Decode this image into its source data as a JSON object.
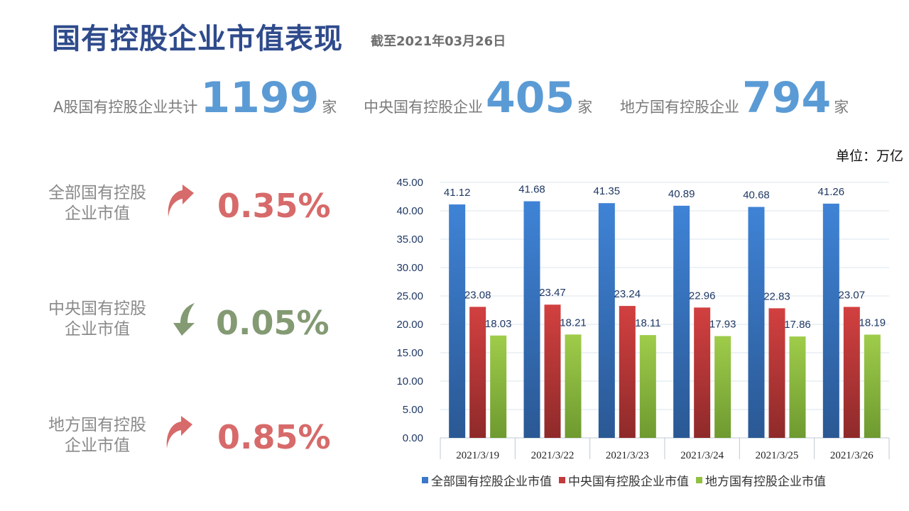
{
  "header": {
    "title": "国有控股企业市值表现",
    "subtitle": "截至2021年03月26日"
  },
  "stats": [
    {
      "label": "A股国有控股企业共计",
      "value": "1199",
      "unit": "家"
    },
    {
      "label": "中央国有控股企业",
      "value": "405",
      "unit": "家"
    },
    {
      "label": "地方国有控股企业",
      "value": "794",
      "unit": "家"
    }
  ],
  "unit_label": "单位：万亿",
  "metrics": [
    {
      "label_line1": "全部国有控股",
      "label_line2": "企业市值",
      "direction": "up",
      "icon": "arrow-up-icon",
      "value": "0.35%",
      "color": "#d76a6a"
    },
    {
      "label_line1": "中央国有控股",
      "label_line2": "企业市值",
      "direction": "down",
      "icon": "arrow-down-icon",
      "value": "0.05%",
      "color": "#839a73"
    },
    {
      "label_line1": "地方国有控股",
      "label_line2": "企业市值",
      "direction": "up",
      "icon": "arrow-up-icon",
      "value": "0.85%",
      "color": "#d76a6a"
    }
  ],
  "chart_data": {
    "type": "bar",
    "categories": [
      "2021/3/19",
      "2021/3/22",
      "2021/3/23",
      "2021/3/24",
      "2021/3/25",
      "2021/3/26"
    ],
    "series": [
      {
        "name": "全部国有控股企业市值",
        "color": "#3a78c9",
        "values": [
          41.12,
          41.68,
          41.35,
          40.89,
          40.68,
          41.26
        ]
      },
      {
        "name": "中央国有控股企业市值",
        "color": "#c43a3a",
        "values": [
          23.08,
          23.47,
          23.24,
          22.96,
          22.83,
          23.07
        ]
      },
      {
        "name": "地方国有控股企业市值",
        "color": "#92c043",
        "values": [
          18.03,
          18.21,
          18.11,
          17.93,
          17.86,
          18.19
        ]
      }
    ],
    "ylim": [
      0,
      45
    ],
    "yticks": [
      "0.00",
      "5.00",
      "10.00",
      "15.00",
      "20.00",
      "25.00",
      "30.00",
      "35.00",
      "40.00",
      "45.00"
    ],
    "data_labels": true,
    "grid": true,
    "legend": "bottom"
  }
}
